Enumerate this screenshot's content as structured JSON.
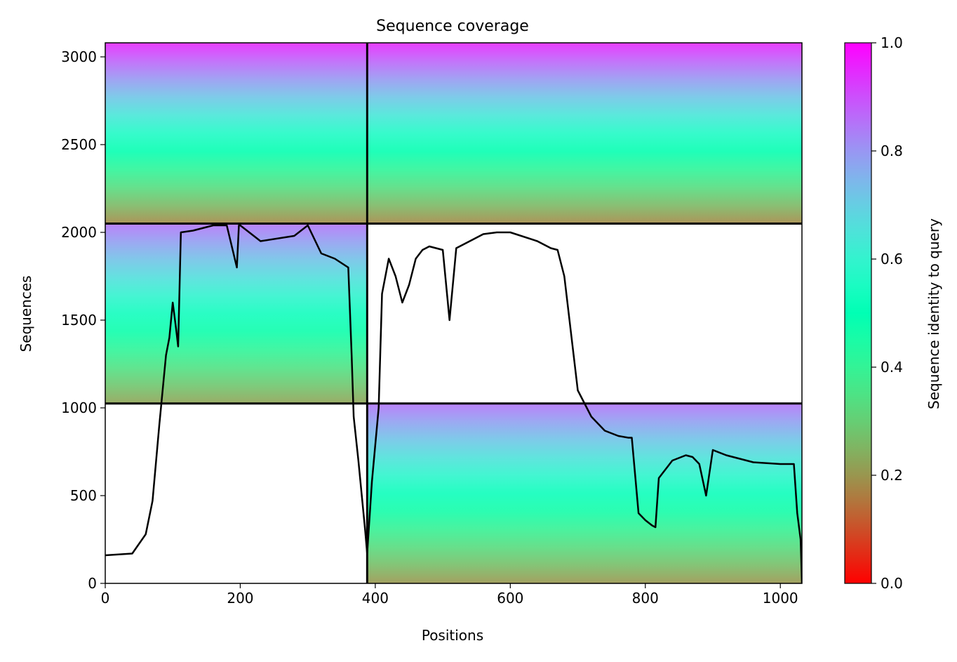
{
  "chart_data": {
    "type": "heatmap",
    "title": "Sequence coverage",
    "xlabel": "Positions",
    "ylabel": "Sequences",
    "xlim": [
      0,
      1032
    ],
    "ylim": [
      0,
      3080
    ],
    "xticks": [
      0,
      200,
      400,
      600,
      800,
      1000
    ],
    "yticks": [
      0,
      500,
      1000,
      1500,
      2000,
      2500,
      3000
    ],
    "grid": false,
    "colorbar": {
      "label": "Sequence identity to query",
      "colormap": "rainbow",
      "range": [
        0,
        1
      ],
      "ticks": [
        "0.0",
        "0.2",
        "0.4",
        "0.6",
        "0.8",
        "1.0"
      ]
    },
    "divider_positions": [
      388
    ],
    "divider_sequences": [
      1025,
      2050
    ],
    "blocks": [
      {
        "x": [
          0,
          388
        ],
        "y": [
          2050,
          3080
        ],
        "identity_gradient": [
          0.18,
          0.95
        ]
      },
      {
        "x": [
          388,
          1032
        ],
        "y": [
          2050,
          3080
        ],
        "identity_gradient": [
          0.18,
          0.95
        ]
      },
      {
        "x": [
          0,
          388
        ],
        "y": [
          1025,
          2050
        ],
        "identity_gradient": [
          0.22,
          0.85
        ]
      },
      {
        "x": [
          388,
          1032
        ],
        "y": [
          1025,
          2050
        ],
        "identity_gradient": null
      },
      {
        "x": [
          0,
          388
        ],
        "y": [
          0,
          1025
        ],
        "identity_gradient": null
      },
      {
        "x": [
          388,
          1032
        ],
        "y": [
          0,
          1025
        ],
        "identity_gradient": [
          0.2,
          0.85
        ]
      }
    ],
    "coverage_line": {
      "color": "#000000",
      "x": [
        0,
        40,
        60,
        70,
        80,
        85,
        90,
        95,
        100,
        105,
        108,
        112,
        130,
        160,
        180,
        195,
        198,
        200,
        230,
        280,
        300,
        320,
        340,
        360,
        365,
        368,
        375,
        385,
        388,
        395,
        405,
        410,
        420,
        430,
        440,
        450,
        460,
        470,
        480,
        500,
        510,
        520,
        540,
        560,
        580,
        600,
        640,
        660,
        670,
        680,
        700,
        720,
        740,
        760,
        775,
        780,
        790,
        800,
        810,
        815,
        820,
        840,
        860,
        870,
        880,
        890,
        900,
        920,
        960,
        1000,
        1020,
        1025,
        1030,
        1032
      ],
      "y": [
        160,
        170,
        280,
        470,
        900,
        1100,
        1300,
        1400,
        1600,
        1450,
        1350,
        2000,
        2010,
        2040,
        2040,
        1800,
        2040,
        2040,
        1950,
        1980,
        2040,
        1880,
        1850,
        1800,
        1300,
        950,
        700,
        300,
        170,
        580,
        1000,
        1650,
        1850,
        1750,
        1600,
        1700,
        1850,
        1900,
        1920,
        1900,
        1500,
        1910,
        1950,
        1990,
        2000,
        2000,
        1950,
        1910,
        1900,
        1750,
        1100,
        950,
        870,
        840,
        830,
        830,
        400,
        360,
        330,
        320,
        600,
        700,
        730,
        720,
        680,
        500,
        760,
        730,
        690,
        680,
        680,
        400,
        250,
        0
      ]
    }
  }
}
